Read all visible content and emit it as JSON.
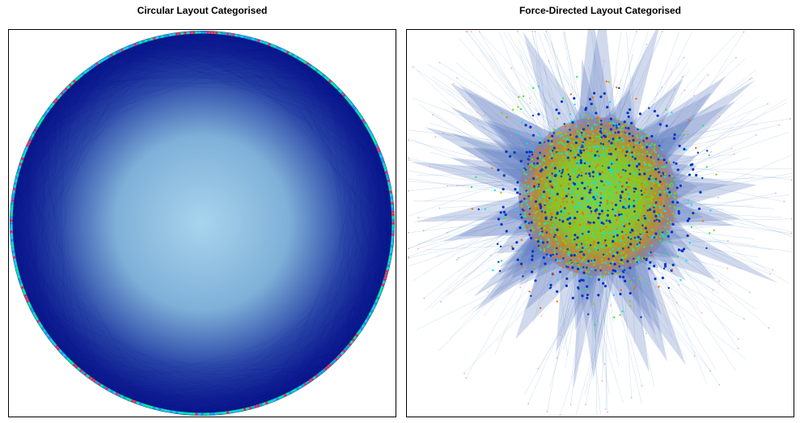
{
  "panels": [
    {
      "title": "Circular Layout Categorised",
      "layout": "circular",
      "colors": {
        "edge_dark": "#0a1a8c",
        "edge_center": "#9ecae6",
        "node_ring": [
          "#00e6a0",
          "#1e90ff",
          "#ff2060",
          "#20c0ff"
        ]
      }
    },
    {
      "title": "Force-Directed Layout Categorised",
      "layout": "force-directed",
      "colors": {
        "edge": "#5a8fc8",
        "core_nodes": [
          "#22ee66",
          "#99cc00",
          "#ff6a00",
          "#0033cc",
          "#00e5ff"
        ]
      }
    }
  ]
}
